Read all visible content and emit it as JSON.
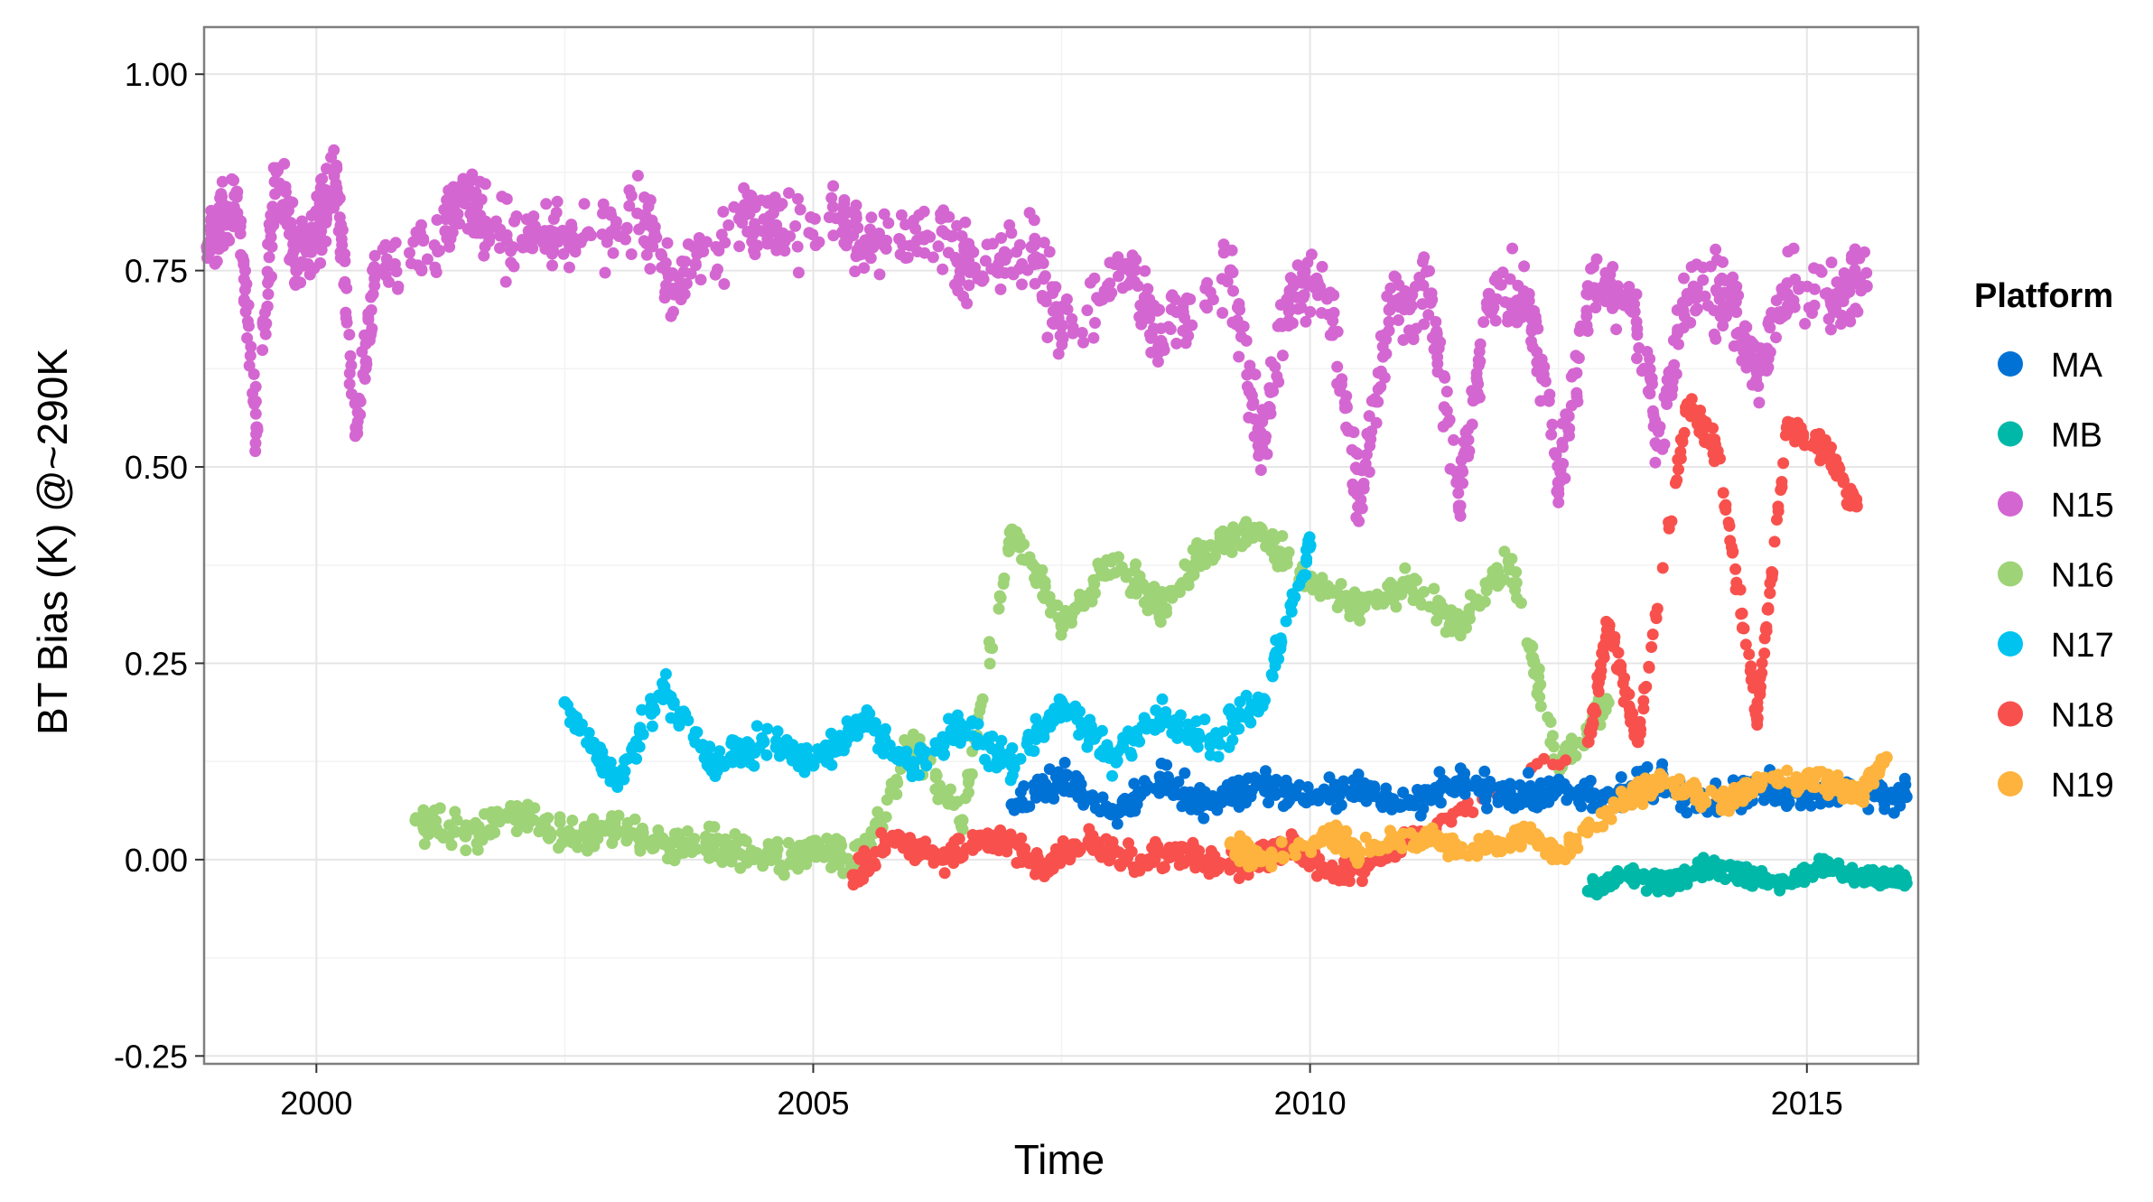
{
  "chart_data": {
    "type": "scatter",
    "title": "",
    "xlabel": "Time",
    "ylabel": "BT Bias (K) @~290K",
    "xlim": [
      1998.87,
      2016.12
    ],
    "ylim": [
      -0.26,
      1.06
    ],
    "x_ticks": [
      2000,
      2005,
      2010,
      2015
    ],
    "x_tick_labels": [
      "2000",
      "2005",
      "2010",
      "2015"
    ],
    "y_ticks": [
      -0.25,
      0,
      0.25,
      0.5,
      0.75,
      1.0
    ],
    "y_tick_labels": [
      "-0.25",
      "0.00",
      "0.25",
      "0.50",
      "0.75",
      "1.00"
    ],
    "grid": true,
    "legend": {
      "title": "Platform",
      "position": "right",
      "entries": [
        {
          "name": "MA",
          "color": "#0072D6"
        },
        {
          "name": "MB",
          "color": "#00B8A8"
        },
        {
          "name": "N15",
          "color": "#D466D1"
        },
        {
          "name": "N16",
          "color": "#9ED377"
        },
        {
          "name": "N17",
          "color": "#00C3F0"
        },
        {
          "name": "N18",
          "color": "#F8514D"
        },
        {
          "name": "N19",
          "color": "#FDB33D"
        }
      ]
    },
    "series": [
      {
        "name": "N15",
        "color": "#D466D1",
        "x": [
          1998.9,
          1999.0,
          1999.2,
          1999.4,
          1999.6,
          1999.8,
          2000.0,
          2000.2,
          2000.4,
          2000.6,
          2001.3,
          2001.5,
          2001.7,
          2002.3,
          2002.6,
          2003.3,
          2003.6,
          2004.3,
          2004.6,
          2005.3,
          2005.6,
          2006.3,
          2006.6,
          2007.2,
          2007.5,
          2008.2,
          2008.5,
          2009.2,
          2009.5,
          2009.8,
          2010.2,
          2010.5,
          2010.8,
          2011.2,
          2011.5,
          2011.8,
          2012.2,
          2012.5,
          2012.8,
          2013.2,
          2013.5,
          2013.8,
          2014.2,
          2014.5,
          2014.8,
          2015.3,
          2015.6
        ],
        "y": [
          0.78,
          0.8,
          0.85,
          0.55,
          0.88,
          0.75,
          0.8,
          0.88,
          0.55,
          0.75,
          0.8,
          0.85,
          0.8,
          0.8,
          0.78,
          0.82,
          0.72,
          0.82,
          0.8,
          0.82,
          0.78,
          0.8,
          0.75,
          0.78,
          0.68,
          0.75,
          0.66,
          0.75,
          0.52,
          0.72,
          0.72,
          0.45,
          0.7,
          0.72,
          0.45,
          0.72,
          0.72,
          0.48,
          0.72,
          0.72,
          0.55,
          0.72,
          0.72,
          0.62,
          0.72,
          0.72,
          0.73
        ]
      },
      {
        "name": "N16",
        "color": "#9ED377",
        "x": [
          2001.0,
          2001.5,
          2002.0,
          2002.5,
          2003.0,
          2003.5,
          2004.0,
          2004.5,
          2005.0,
          2005.5,
          2006.0,
          2006.5,
          2007.0,
          2007.5,
          2008.0,
          2008.5,
          2009.0,
          2009.5,
          2010.0,
          2010.5,
          2011.0,
          2011.5,
          2012.0,
          2012.5,
          2013.0
        ],
        "y": [
          0.05,
          0.03,
          0.06,
          0.03,
          0.04,
          0.02,
          0.02,
          0.0,
          0.01,
          0.0,
          0.15,
          0.05,
          0.42,
          0.3,
          0.38,
          0.32,
          0.4,
          0.42,
          0.35,
          0.32,
          0.35,
          0.3,
          0.38,
          0.12,
          0.2
        ]
      },
      {
        "name": "N17",
        "color": "#00C3F0",
        "x": [
          2002.5,
          2003.0,
          2003.5,
          2004.0,
          2004.5,
          2005.0,
          2005.5,
          2006.0,
          2006.5,
          2007.0,
          2007.5,
          2008.0,
          2008.5,
          2009.0,
          2009.5,
          2010.0
        ],
        "y": [
          0.2,
          0.1,
          0.22,
          0.12,
          0.15,
          0.12,
          0.18,
          0.12,
          0.17,
          0.12,
          0.2,
          0.13,
          0.18,
          0.15,
          0.2,
          0.4
        ]
      },
      {
        "name": "N18",
        "color": "#F8514D",
        "x": [
          2005.4,
          2005.8,
          2006.3,
          2006.8,
          2007.3,
          2007.8,
          2008.3,
          2008.8,
          2009.3,
          2009.8,
          2010.3,
          2010.8,
          2012.8,
          2013.0,
          2013.3,
          2013.8,
          2014.1,
          2014.5,
          2014.8,
          2015.2,
          2015.5
        ],
        "y": [
          -0.02,
          0.03,
          0.0,
          0.03,
          -0.01,
          0.02,
          0.0,
          0.01,
          -0.01,
          0.02,
          -0.02,
          0.01,
          0.15,
          0.3,
          0.15,
          0.58,
          0.52,
          0.18,
          0.55,
          0.52,
          0.45
        ]
      },
      {
        "name": "MA",
        "color": "#0072D6",
        "x": [
          2007.0,
          2007.5,
          2008.0,
          2008.5,
          2009.0,
          2009.5,
          2010.0,
          2010.5,
          2011.0,
          2011.5,
          2012.0,
          2012.5,
          2013.0,
          2013.5,
          2014.0,
          2014.5,
          2015.0,
          2015.5,
          2016.0
        ],
        "y": [
          0.07,
          0.1,
          0.06,
          0.1,
          0.07,
          0.1,
          0.08,
          0.09,
          0.07,
          0.1,
          0.08,
          0.09,
          0.08,
          0.1,
          0.07,
          0.09,
          0.08,
          0.09,
          0.08
        ]
      },
      {
        "name": "N19",
        "color": "#FDB33D",
        "x": [
          2009.2,
          2009.5,
          2010.2,
          2010.5,
          2011.2,
          2011.5,
          2012.2,
          2012.5,
          2013.2,
          2013.5,
          2014.2,
          2014.5,
          2015.2,
          2015.5,
          2015.8
        ],
        "y": [
          0.02,
          0.0,
          0.03,
          0.01,
          0.03,
          0.01,
          0.03,
          0.01,
          0.08,
          0.1,
          0.07,
          0.1,
          0.1,
          0.08,
          0.13
        ]
      },
      {
        "name": "MB",
        "color": "#00B8A8",
        "x": [
          2012.8,
          2013.2,
          2013.6,
          2014.0,
          2014.4,
          2014.8,
          2015.2,
          2015.6,
          2016.0
        ],
        "y": [
          -0.04,
          -0.02,
          -0.03,
          -0.01,
          -0.02,
          -0.03,
          -0.01,
          -0.02,
          -0.03
        ]
      }
    ]
  }
}
